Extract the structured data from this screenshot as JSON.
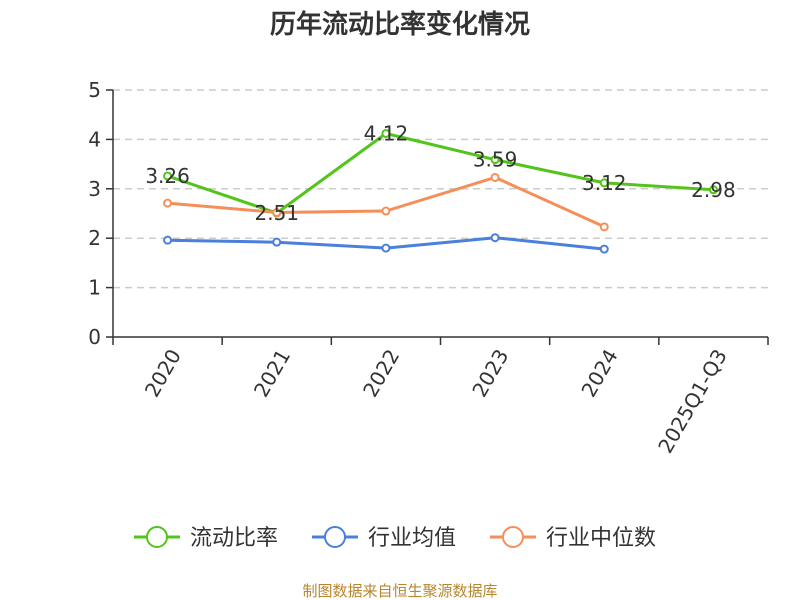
{
  "chart_data": {
    "type": "line",
    "title": "历年流动比率变化情况",
    "categories": [
      "2020",
      "2021",
      "2022",
      "2023",
      "2024",
      "2025Q1-Q3"
    ],
    "ylim": [
      0,
      5
    ],
    "yticks": [
      "0",
      "1",
      "2",
      "3",
      "4",
      "5"
    ],
    "grid": true,
    "legend_position": "bottom",
    "series": [
      {
        "name": "流动比率",
        "color": "#52c41a",
        "values": [
          3.26,
          2.51,
          4.12,
          3.59,
          3.12,
          2.98
        ],
        "labels": [
          "3.26",
          "2.51",
          "4.12",
          "3.59",
          "3.12",
          "2.98"
        ]
      },
      {
        "name": "行业均值",
        "color": "#4a7fdc",
        "values": [
          1.96,
          1.92,
          1.8,
          2.01,
          1.78,
          null
        ]
      },
      {
        "name": "行业中位数",
        "color": "#f58f5a",
        "values": [
          2.71,
          2.52,
          2.55,
          3.23,
          2.23,
          null
        ]
      }
    ]
  },
  "source_note": "制图数据来自恒生聚源数据库"
}
